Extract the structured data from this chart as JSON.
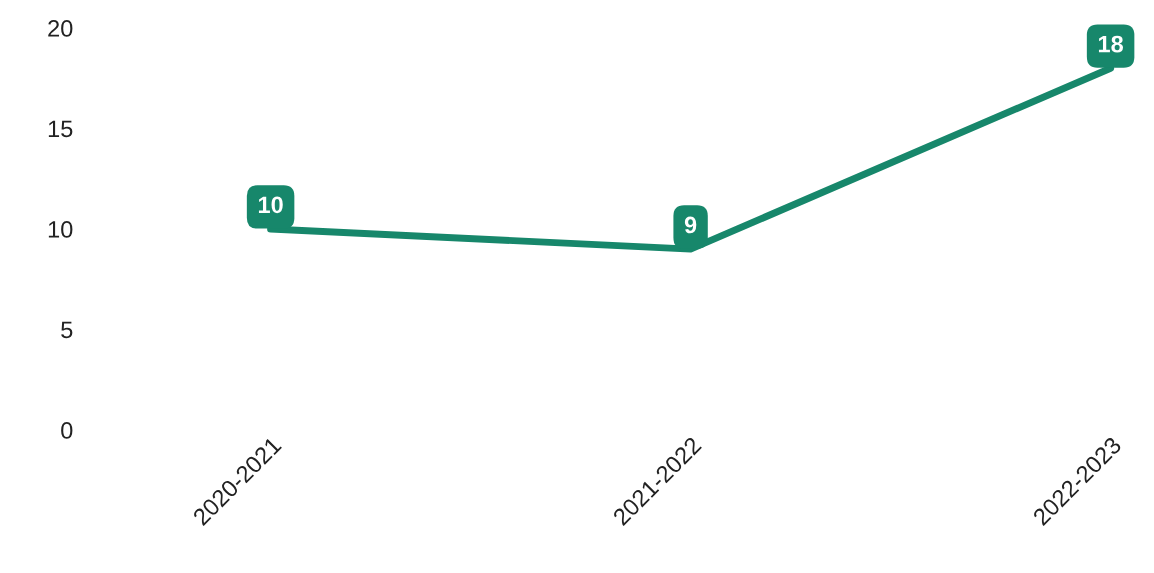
{
  "chart_data": {
    "type": "line",
    "categories": [
      "2020-2021",
      "2021-2022",
      "2022-2023"
    ],
    "series": [
      {
        "color": "#17876b",
        "values": [
          10,
          9,
          18
        ]
      }
    ],
    "ylim": [
      0,
      20
    ],
    "yticks": [
      0,
      5,
      10,
      15,
      20
    ],
    "grid": false,
    "legend": false,
    "marker": "none",
    "data_labels": true
  }
}
